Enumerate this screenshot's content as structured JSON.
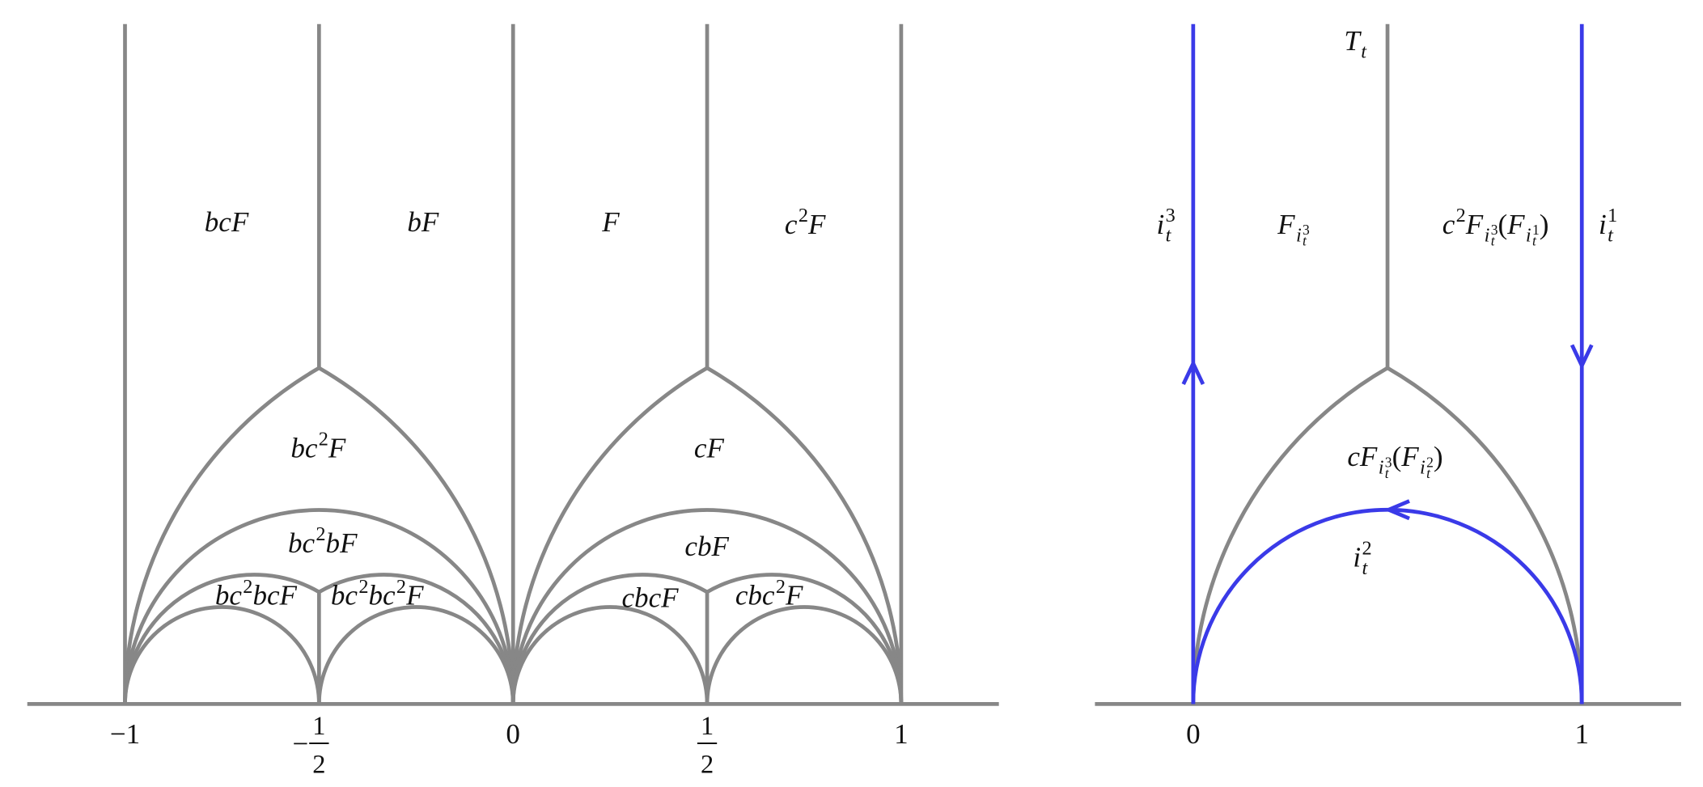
{
  "left": {
    "regions": [
      {
        "parts": [
          [
            "bcF",
            "b"
          ]
        ]
      },
      {
        "parts": [
          [
            "bF",
            "b"
          ]
        ]
      },
      {
        "parts": [
          [
            "F",
            "b"
          ]
        ]
      },
      {
        "parts": [
          [
            "c",
            "b"
          ],
          [
            "2",
            "sup"
          ],
          [
            "F",
            "b"
          ]
        ]
      },
      {
        "parts": [
          [
            "bc",
            "b"
          ],
          [
            "2",
            "sup"
          ],
          [
            "F",
            "b"
          ]
        ]
      },
      {
        "parts": [
          [
            "cF",
            "b"
          ]
        ]
      },
      {
        "parts": [
          [
            "bc",
            "b"
          ],
          [
            "2",
            "sup"
          ],
          [
            "bF",
            "b"
          ]
        ]
      },
      {
        "parts": [
          [
            "cbF",
            "b"
          ]
        ]
      },
      {
        "parts": [
          [
            "bc",
            "b"
          ],
          [
            "2",
            "sup"
          ],
          [
            "bcF",
            "b"
          ]
        ]
      },
      {
        "parts": [
          [
            "bc",
            "b"
          ],
          [
            "2",
            "sup"
          ],
          [
            "bc",
            "b"
          ],
          [
            "2",
            "sup"
          ],
          [
            "F",
            "b"
          ]
        ]
      },
      {
        "parts": [
          [
            "cbcF",
            "b"
          ]
        ]
      },
      {
        "parts": [
          [
            "cbc",
            "b"
          ],
          [
            "2",
            "sup"
          ],
          [
            "F",
            "b"
          ]
        ]
      }
    ],
    "ticks": [
      {
        "value": -1,
        "label": "−1"
      },
      {
        "value": -0.5,
        "sign": "−",
        "numerator": "1",
        "denominator": "2"
      },
      0,
      {
        "value": 0.5,
        "numerator": "1",
        "denominator": "2"
      },
      1
    ]
  },
  "right": {
    "regions": [
      {
        "parts": [
          [
            "T",
            "b"
          ],
          [
            "t",
            "sub"
          ]
        ]
      },
      {
        "parts": [
          [
            "i",
            "b"
          ],
          [
            "t",
            "sub"
          ],
          [
            "3",
            "sup*"
          ]
        ]
      },
      {
        "parts": [
          [
            "F",
            "b"
          ],
          [
            "i",
            "sub"
          ],
          [
            "t",
            "ss"
          ],
          [
            "3",
            "ssup*"
          ]
        ]
      },
      {
        "parts": [
          [
            "c",
            "b"
          ],
          [
            "2",
            "sup"
          ],
          [
            "F",
            "b"
          ],
          [
            "i",
            "sub"
          ],
          [
            "t",
            "ss"
          ],
          [
            "3",
            "ssup*"
          ],
          [
            "(",
            "b"
          ],
          [
            "F",
            "b"
          ],
          [
            "i",
            "sub"
          ],
          [
            "t",
            "ss"
          ],
          [
            "1",
            "ssup*"
          ],
          [
            ")",
            "b"
          ]
        ]
      },
      {
        "parts": [
          [
            "i",
            "b"
          ],
          [
            "t",
            "sub"
          ],
          [
            "1",
            "sup*"
          ]
        ]
      },
      {
        "parts": [
          [
            "cF",
            "b"
          ],
          [
            "i",
            "sub"
          ],
          [
            "t",
            "ss"
          ],
          [
            "3",
            "ssup*"
          ],
          [
            "(",
            "b"
          ],
          [
            "F",
            "b"
          ],
          [
            "i",
            "sub"
          ],
          [
            "t",
            "ss"
          ],
          [
            "2",
            "ssup*"
          ],
          [
            ")",
            "b"
          ]
        ]
      },
      {
        "parts": [
          [
            "i",
            "b"
          ],
          [
            "t",
            "sub"
          ],
          [
            "2",
            "sup*"
          ]
        ]
      }
    ],
    "ticks": [
      0,
      1
    ]
  }
}
